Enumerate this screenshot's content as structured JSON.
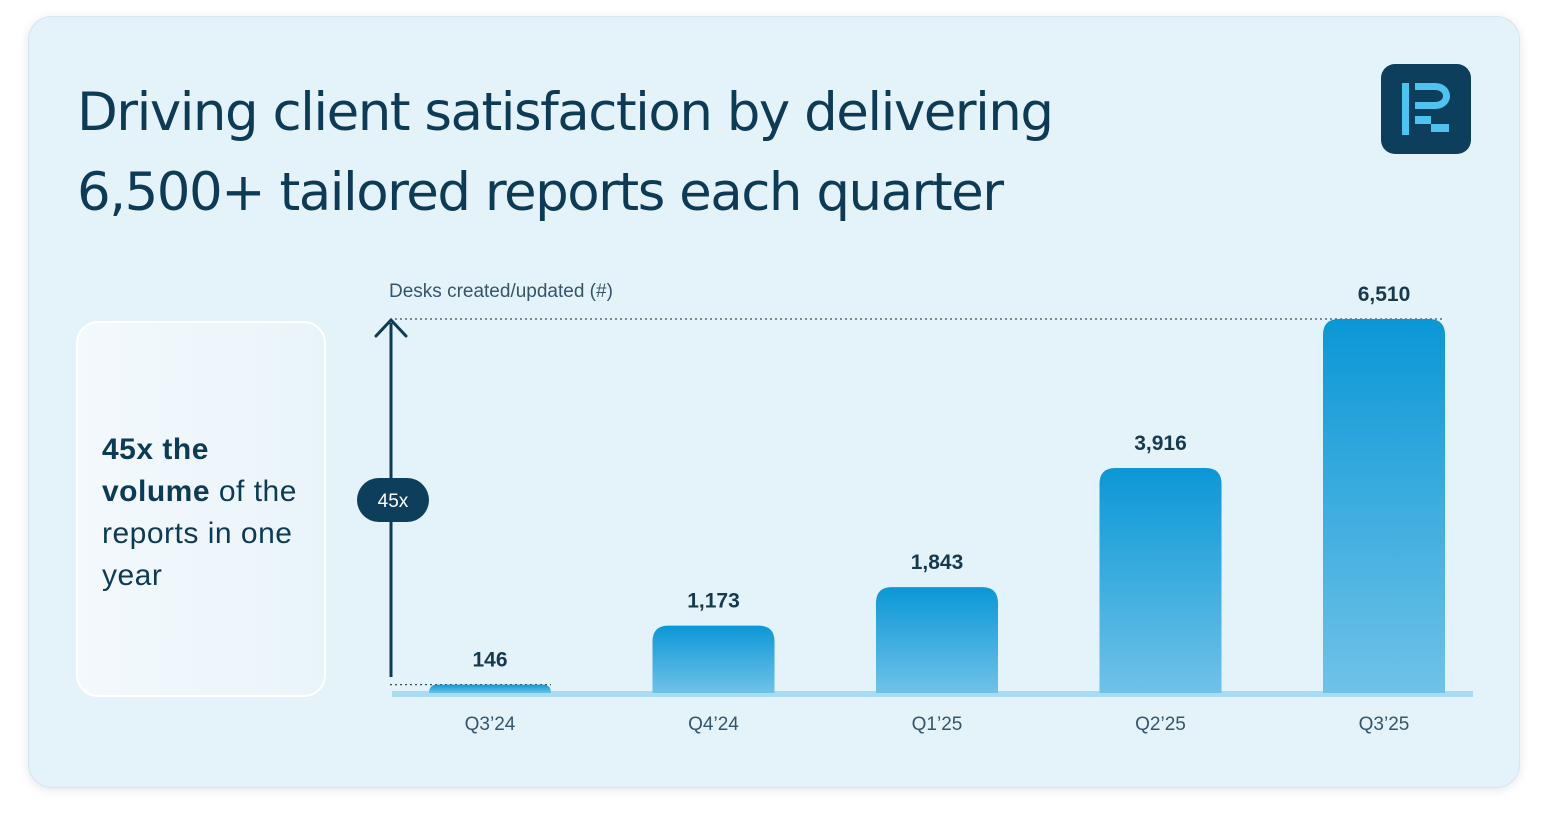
{
  "title": {
    "line1": "Driving client satisfaction by delivering",
    "line2": "6,500+ tailored reports each quarter"
  },
  "logo": {
    "icon": "report-r-logo-icon",
    "color": "#0d3f5c"
  },
  "highlight": {
    "bold": "45x the volume",
    "rest": " of the reports in one year"
  },
  "colors": {
    "background": "#e4f2fa",
    "title": "#0d3b56",
    "bar_top": "#0b97d6",
    "bar_bottom": "#6fc2e8",
    "baseline": "#a9dcf0"
  },
  "chart_data": {
    "type": "bar",
    "ylabel": "Desks created/updated (#)",
    "categories": [
      "Q3’24",
      "Q4’24",
      "Q1’25",
      "Q2’25",
      "Q3’25"
    ],
    "values": [
      146,
      1173,
      1843,
      3916,
      6510
    ],
    "value_labels": [
      "146",
      "1,173",
      "1,843",
      "3,916",
      "6,510"
    ],
    "ylim": [
      0,
      6510
    ],
    "grid": false,
    "annotation": {
      "text": "45x",
      "from_category": "Q3’24",
      "to_category": "Q3’25"
    }
  }
}
